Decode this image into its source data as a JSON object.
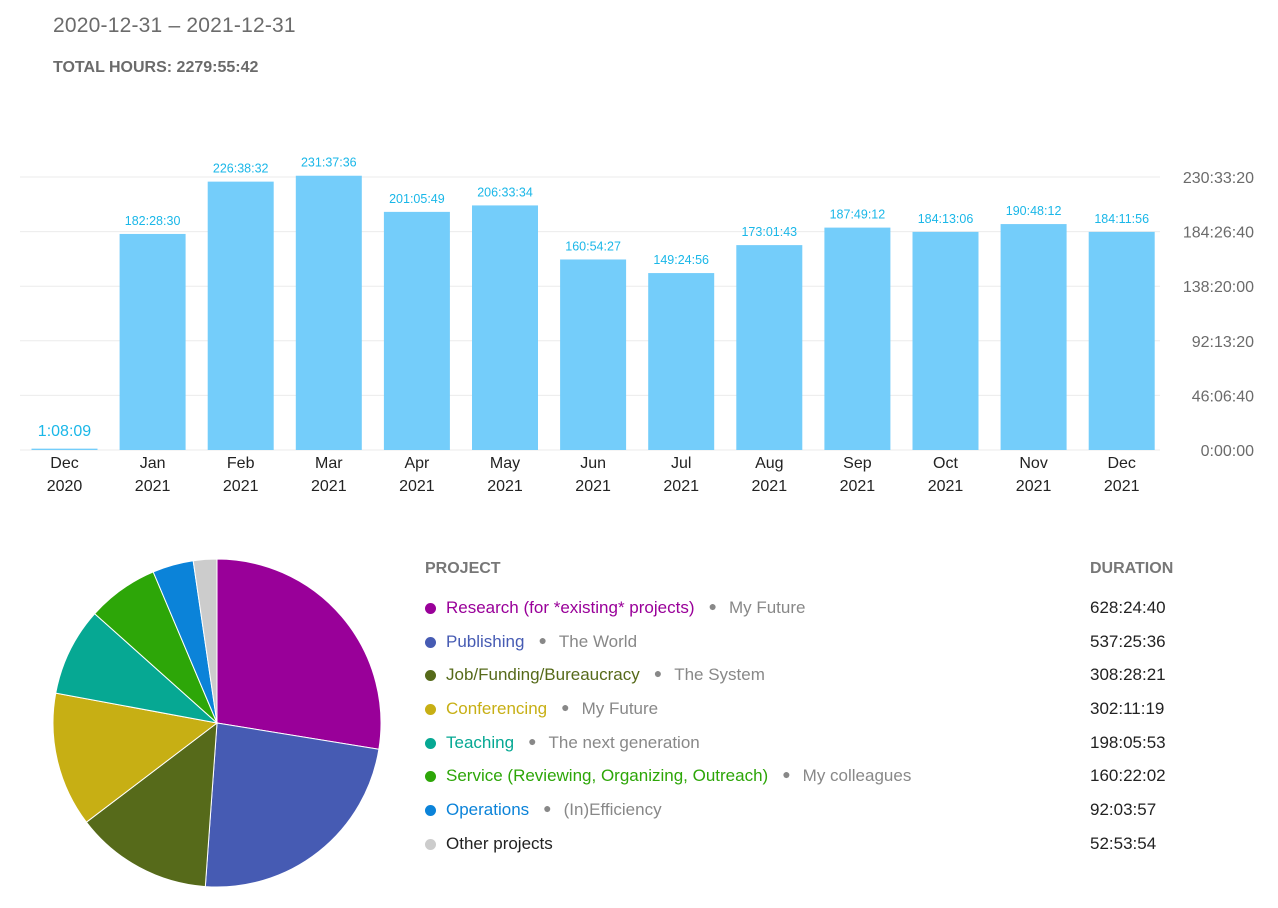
{
  "header": {
    "date_range": "2020-12-31 – 2021-12-31",
    "total_hours": "TOTAL HOURS: 2279:55:42"
  },
  "colors": {
    "bar": "#74cdfa",
    "bar_label": "#1ab7e8",
    "axis_text": "#6b6b6b",
    "grid": "#ebebeb"
  },
  "chart_data": {
    "type": "bar",
    "categories": [
      [
        "Dec",
        "2020"
      ],
      [
        "Jan",
        "2021"
      ],
      [
        "Feb",
        "2021"
      ],
      [
        "Mar",
        "2021"
      ],
      [
        "Apr",
        "2021"
      ],
      [
        "May",
        "2021"
      ],
      [
        "Jun",
        "2021"
      ],
      [
        "Jul",
        "2021"
      ],
      [
        "Aug",
        "2021"
      ],
      [
        "Sep",
        "2021"
      ],
      [
        "Oct",
        "2021"
      ],
      [
        "Nov",
        "2021"
      ],
      [
        "Dec",
        "2021"
      ]
    ],
    "values_hours": [
      1.1358,
      182.475,
      226.6422,
      231.6267,
      201.0969,
      206.5594,
      160.9075,
      149.4156,
      173.0286,
      187.82,
      184.2183,
      190.8033,
      184.1989
    ],
    "data_labels": [
      "1:08:09",
      "182:28:30",
      "226:38:32",
      "231:37:36",
      "201:05:49",
      "206:33:34",
      "160:54:27",
      "149:24:56",
      "173:01:43",
      "187:49:12",
      "184:13:06",
      "190:48:12",
      "184:11:56"
    ],
    "y_ticks": [
      {
        "value": 0,
        "label": "0:00:00"
      },
      {
        "value": 46.111,
        "label": "46:06:40"
      },
      {
        "value": 92.222,
        "label": "92:13:20"
      },
      {
        "value": 138.333,
        "label": "138:20:00"
      },
      {
        "value": 184.444,
        "label": "184:26:40"
      },
      {
        "value": 230.556,
        "label": "230:33:20"
      }
    ],
    "ylim": [
      0,
      230.556
    ],
    "grid": true
  },
  "breakdown": {
    "header_project": "PROJECT",
    "header_duration": "DURATION",
    "projects": [
      {
        "name": "Research (for *existing* projects)",
        "client": "My Future",
        "duration": "628:24:40",
        "hours": 628.411,
        "color": "#990099"
      },
      {
        "name": "Publishing",
        "client": "The World",
        "duration": "537:25:36",
        "hours": 537.427,
        "color": "#465bb3"
      },
      {
        "name": "Job/Funding/Bureaucracy",
        "client": "The System",
        "duration": "308:28:21",
        "hours": 308.473,
        "color": "#566a1a"
      },
      {
        "name": "Conferencing",
        "client": "My Future",
        "duration": "302:11:19",
        "hours": 302.189,
        "color": "#c7af14"
      },
      {
        "name": "Teaching",
        "client": "The next generation",
        "duration": "198:05:53",
        "hours": 198.098,
        "color": "#06a893"
      },
      {
        "name": "Service (Reviewing, Organizing, Outreach)",
        "client": "My colleagues",
        "duration": "160:22:02",
        "hours": 160.367,
        "color": "#2da608"
      },
      {
        "name": "Operations",
        "client": "(In)Efficiency",
        "duration": "92:03:57",
        "hours": 92.066,
        "color": "#0b83d9"
      },
      {
        "name": "Other projects",
        "client": "",
        "duration": "52:53:54",
        "hours": 52.898,
        "color": "#cccccc",
        "text_color": "#222222"
      }
    ]
  }
}
